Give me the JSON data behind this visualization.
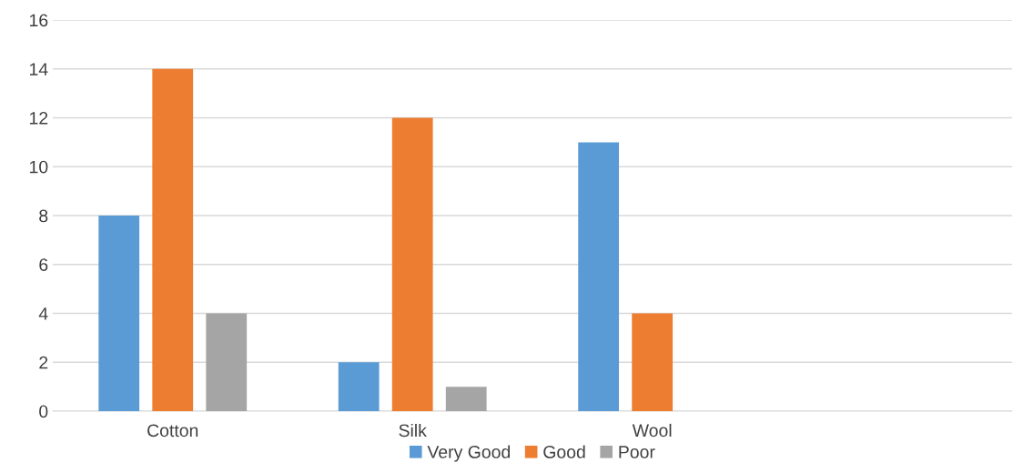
{
  "chart_data": {
    "type": "bar",
    "categories": [
      "Cotton",
      "Silk",
      "Wool",
      null
    ],
    "series": [
      {
        "name": "Very Good",
        "color": "#5b9bd5",
        "values": [
          8,
          2,
          11,
          null
        ]
      },
      {
        "name": "Good",
        "color": "#ed7d31",
        "values": [
          14,
          12,
          4,
          null
        ]
      },
      {
        "name": "Poor",
        "color": "#a5a5a5",
        "values": [
          4,
          1,
          null,
          null
        ]
      }
    ],
    "ylim": [
      0,
      16
    ],
    "yticks": [
      0,
      2,
      4,
      6,
      8,
      10,
      12,
      14,
      16
    ],
    "grid": "y",
    "legend": "bottom"
  }
}
